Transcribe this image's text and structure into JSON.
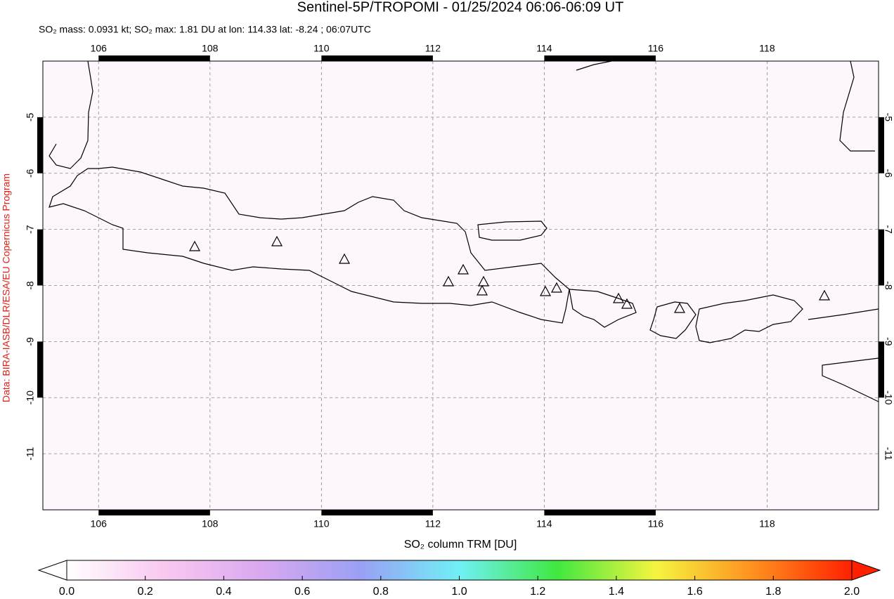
{
  "title": "Sentinel-5P/TROPOMI - 01/25/2024 06:06-06:09 UT",
  "subtitle": "SO₂ mass: 0.0931 kt; SO₂ max: 1.81 DU at lon: 114.33 lat: -8.24 ; 06:07UTC",
  "credit": "Data: BIRA-IASB/DLR/ESA/EU Copernicus Program",
  "map": {
    "xlim": [
      105,
      120
    ],
    "ylim": [
      -12,
      -4
    ],
    "xticks": [
      106,
      108,
      110,
      112,
      114,
      116,
      118
    ],
    "yticks": [
      -5,
      -6,
      -7,
      -8,
      -9,
      -10,
      -11
    ],
    "grid": true
  },
  "colorbar": {
    "label": "SO₂ column TRM [DU]",
    "clim": [
      0,
      2
    ],
    "colors": [
      "#ffffff",
      "#f9c8f0",
      "#d9a8f0",
      "#9aa0f5",
      "#70f0f5",
      "#40e840",
      "#f5f540",
      "#ff9020",
      "#ff2000"
    ],
    "ticks": [
      {
        "value": 0,
        "label": "0.0"
      },
      {
        "value": 0.2,
        "label": "0.2"
      },
      {
        "value": 0.4,
        "label": "0.4"
      },
      {
        "value": 0.6,
        "label": "0.6"
      },
      {
        "value": 0.8,
        "label": "0.8"
      },
      {
        "value": 1,
        "label": "1.0"
      },
      {
        "value": 1.2,
        "label": "1.2"
      },
      {
        "value": 1.4,
        "label": "1.4"
      },
      {
        "value": 1.6,
        "label": "1.6"
      },
      {
        "value": 1.8,
        "label": "1.8"
      },
      {
        "value": 2,
        "label": "2.0"
      }
    ]
  }
}
